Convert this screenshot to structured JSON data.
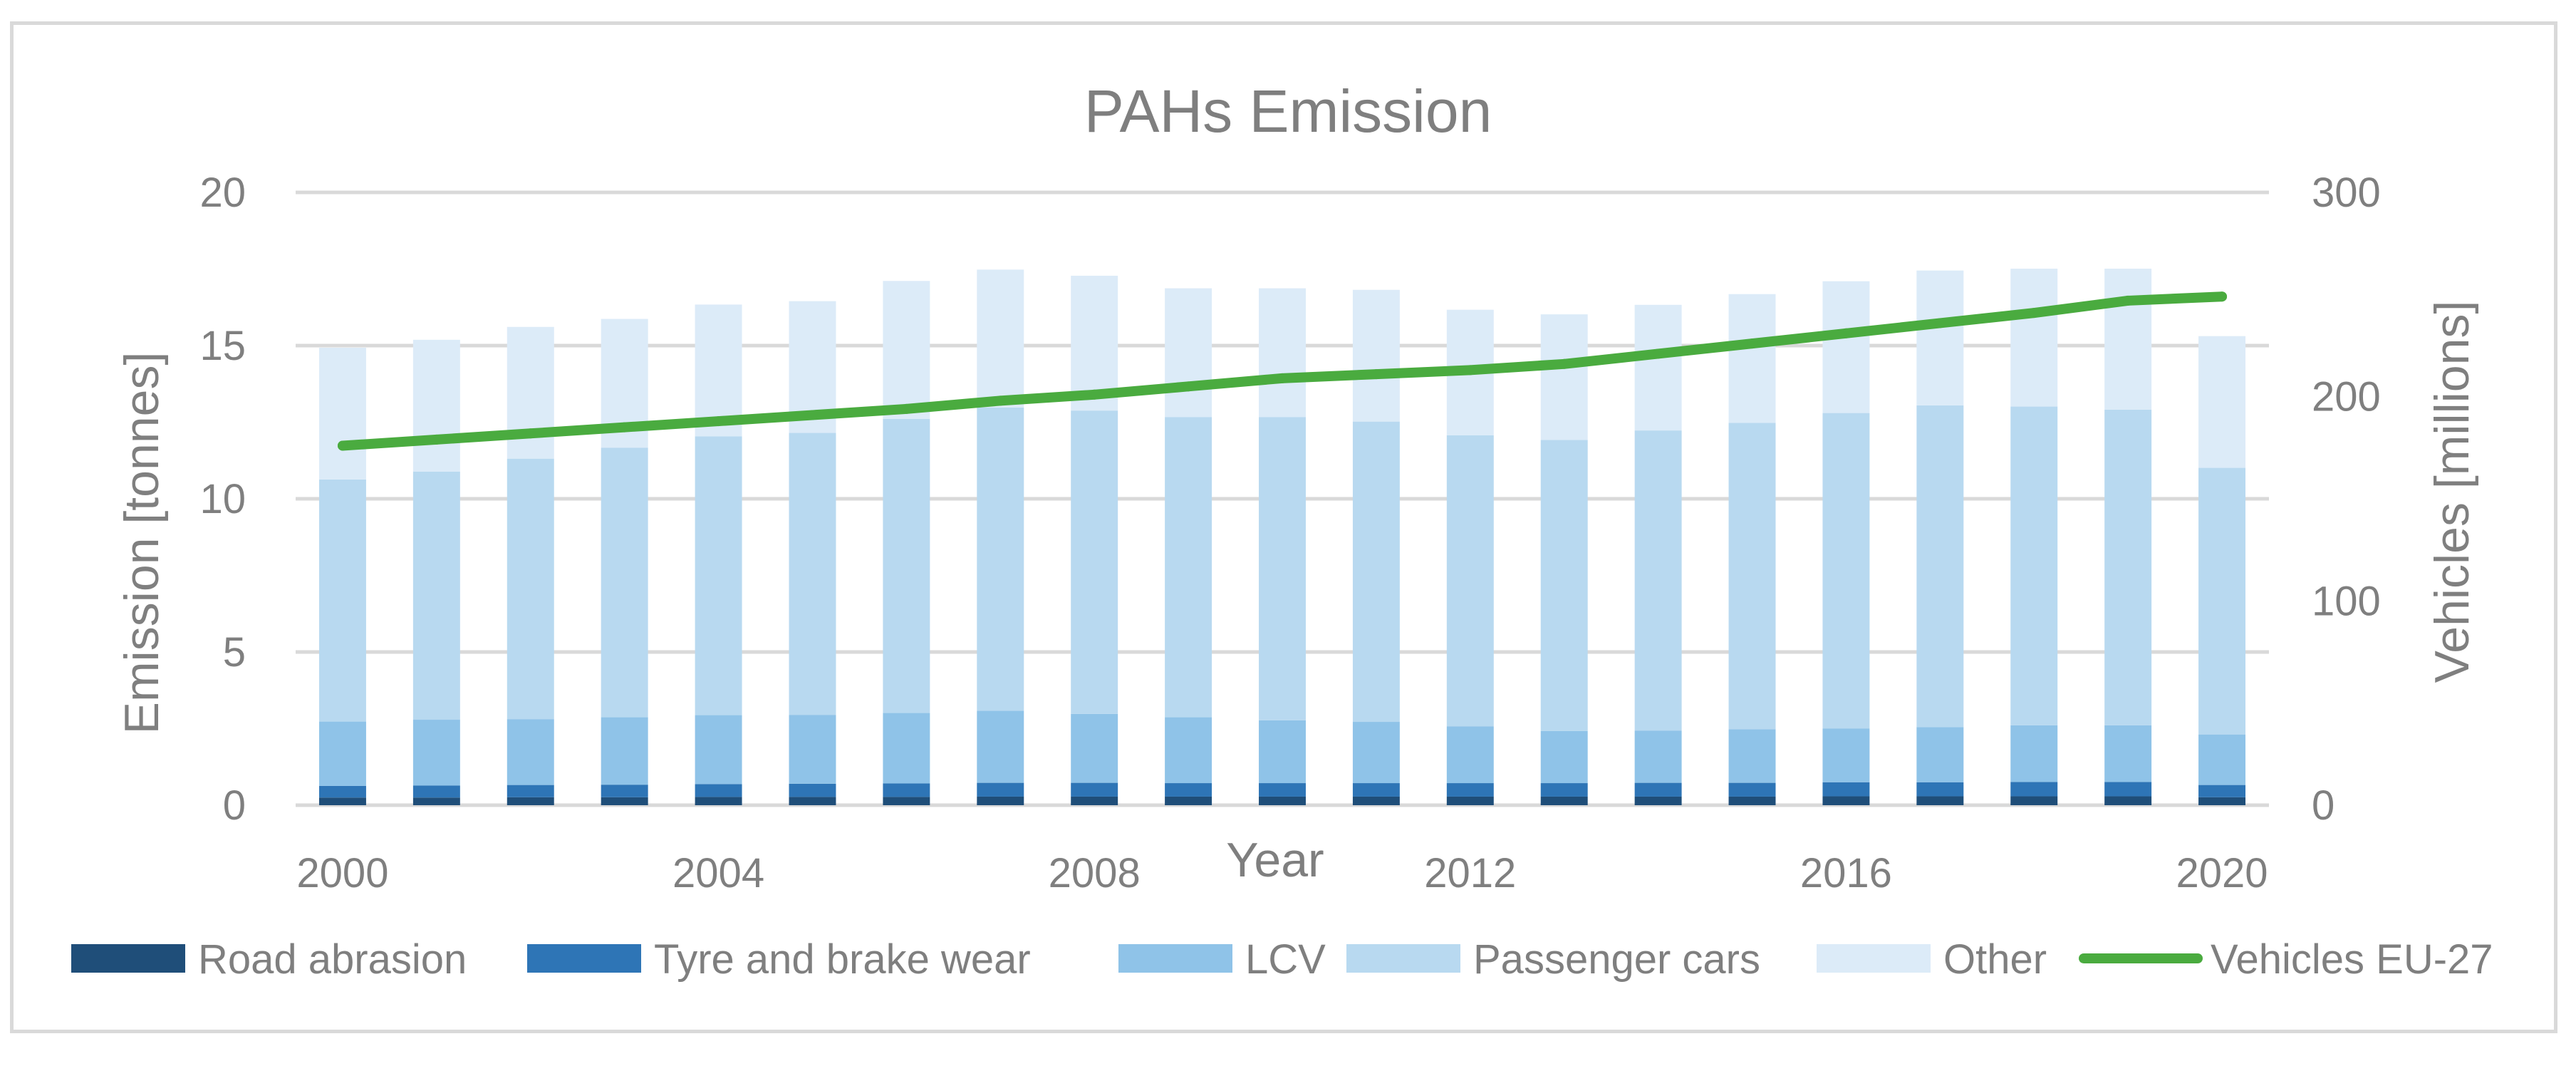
{
  "chart_data": {
    "type": "bar",
    "stacked": true,
    "title": "PAHs Emission",
    "xlabel": "Year",
    "ylabel": "Emission [tonnes]",
    "y2label": "Vehicles [millions]",
    "ylim": [
      0,
      20
    ],
    "y2lim": [
      0,
      300
    ],
    "yticks": [
      "0",
      "5",
      "10",
      "15",
      "20"
    ],
    "y2ticks": [
      "0",
      "100",
      "200",
      "300"
    ],
    "categories": [
      "2000",
      "2001",
      "2002",
      "2003",
      "2004",
      "2005",
      "2006",
      "2007",
      "2008",
      "2009",
      "2010",
      "2011",
      "2012",
      "2013",
      "2014",
      "2015",
      "2016",
      "2017",
      "2018",
      "2019",
      "2020"
    ],
    "xtick_labels": [
      "2000",
      "2004",
      "2008",
      "2012",
      "2016",
      "2020"
    ],
    "grid": true,
    "legend_position": "bottom",
    "series": [
      {
        "name": "Road abrasion",
        "color": "#1f4e79",
        "values": [
          0.25,
          0.25,
          0.26,
          0.26,
          0.27,
          0.27,
          0.27,
          0.28,
          0.28,
          0.28,
          0.28,
          0.28,
          0.28,
          0.28,
          0.28,
          0.28,
          0.29,
          0.29,
          0.29,
          0.29,
          0.26
        ]
      },
      {
        "name": "Tyre and brake wear",
        "color": "#2e75b6",
        "values": [
          0.38,
          0.39,
          0.4,
          0.41,
          0.42,
          0.43,
          0.44,
          0.45,
          0.45,
          0.44,
          0.44,
          0.44,
          0.44,
          0.44,
          0.45,
          0.45,
          0.46,
          0.46,
          0.47,
          0.47,
          0.4
        ]
      },
      {
        "name": "LCV",
        "color": "#8fc3e8",
        "values": [
          2.1,
          2.15,
          2.15,
          2.2,
          2.25,
          2.25,
          2.3,
          2.35,
          2.25,
          2.15,
          2.05,
          2.0,
          1.85,
          1.7,
          1.7,
          1.75,
          1.75,
          1.8,
          1.85,
          1.85,
          1.65
        ]
      },
      {
        "name": "Passenger cars",
        "color": "#b8d9f0",
        "values": [
          7.9,
          8.1,
          8.5,
          8.8,
          9.1,
          9.2,
          9.6,
          9.9,
          9.9,
          9.8,
          9.9,
          9.8,
          9.5,
          9.5,
          9.8,
          10.0,
          10.3,
          10.5,
          10.4,
          10.3,
          8.7
        ]
      },
      {
        "name": "Other",
        "color": "#dcebf8",
        "values": [
          4.3,
          4.3,
          4.3,
          4.2,
          4.3,
          4.3,
          4.5,
          4.5,
          4.4,
          4.2,
          4.2,
          4.3,
          4.1,
          4.1,
          4.1,
          4.2,
          4.3,
          4.4,
          4.5,
          4.6,
          4.3
        ]
      },
      {
        "name": "Vehicles EU-27",
        "color": "#4aab3f",
        "type": "line",
        "axis": "right",
        "values": [
          176,
          179,
          182,
          185,
          188,
          191,
          194,
          198,
          201,
          205,
          209,
          211,
          213,
          216,
          221,
          226,
          231,
          236,
          241,
          247,
          249
        ]
      }
    ]
  }
}
